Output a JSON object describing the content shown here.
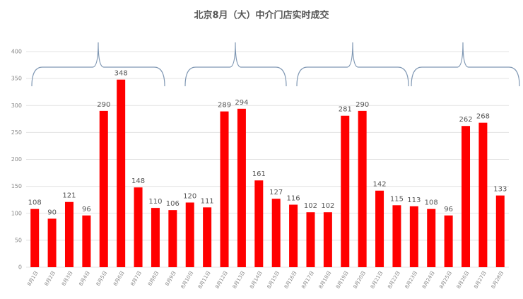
{
  "chart_data": {
    "type": "bar",
    "title": "北京8月（大）中介门店实时成交",
    "categories": [
      "8月1日",
      "8月2日",
      "8月3日",
      "8月4日",
      "8月5日",
      "8月6日",
      "8月7日",
      "8月8日",
      "8月9日",
      "8月10日",
      "8月11日",
      "8月12日",
      "8月13日",
      "8月14日",
      "8月15日",
      "8月16日",
      "8月17日",
      "8月18日",
      "8月19日",
      "8月20日",
      "8月21日",
      "8月22日",
      "8月23日",
      "8月24日",
      "8月25日",
      "8月26日",
      "8月27日",
      "8月28日"
    ],
    "values": [
      108,
      90,
      121,
      96,
      290,
      348,
      148,
      110,
      106,
      120,
      111,
      289,
      294,
      161,
      127,
      116,
      102,
      102,
      281,
      290,
      142,
      115,
      113,
      108,
      96,
      262,
      268,
      133
    ],
    "color": "#ff0000",
    "ylim": [
      0,
      400
    ],
    "yticks": [
      0,
      50,
      100,
      150,
      200,
      250,
      300,
      350,
      400
    ],
    "grid": true
  }
}
